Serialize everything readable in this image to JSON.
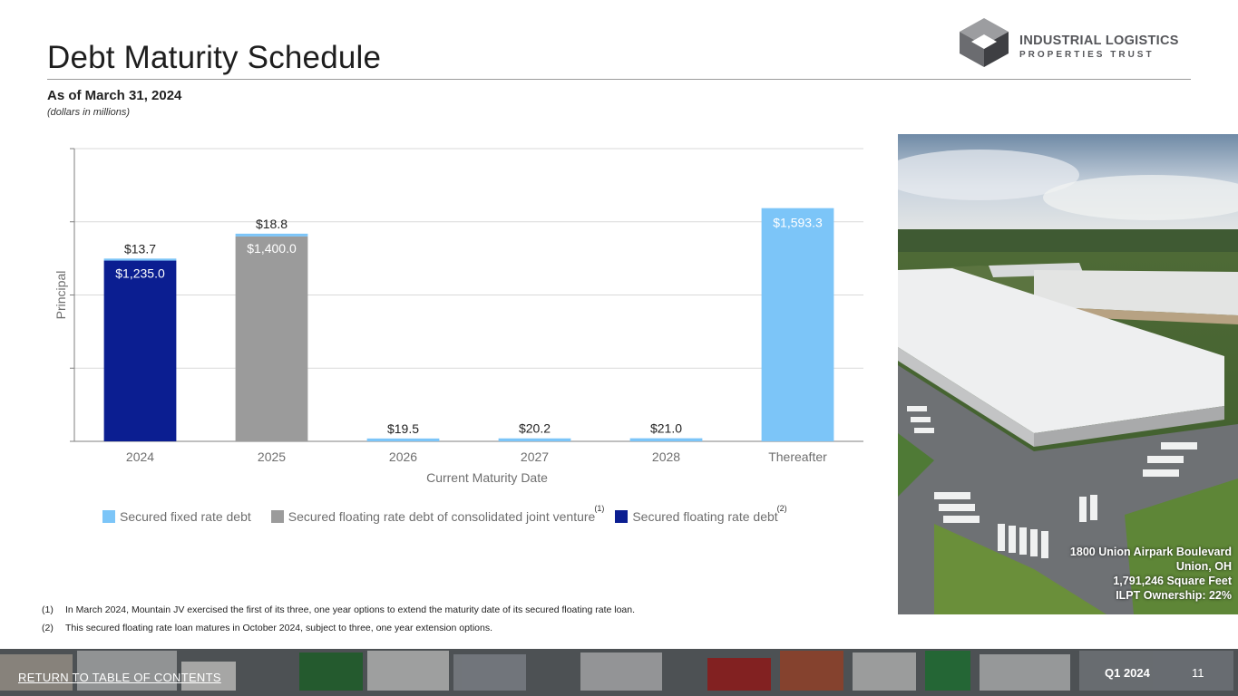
{
  "header": {
    "title": "Debt Maturity Schedule",
    "subtitle": "As of March 31, 2024",
    "units": "(dollars in millions)"
  },
  "logo": {
    "line1": "INDUSTRIAL LOGISTICS",
    "line2": "PROPERTIES TRUST",
    "colors": {
      "top": "#9c9da0",
      "left": "#6b6c70",
      "right": "#3e3f43",
      "text": "#55565a"
    }
  },
  "chart_data": {
    "type": "bar",
    "stacked": true,
    "title": "",
    "xlabel": "Current Maturity Date",
    "ylabel": "Principal",
    "ylim": [
      0,
      2000
    ],
    "y_ticks": [
      0,
      500,
      1000,
      1500,
      2000
    ],
    "y_tick_labels_visible": false,
    "grid": true,
    "legend_position": "bottom",
    "categories": [
      "2024",
      "2025",
      "2026",
      "2027",
      "2028",
      "Thereafter"
    ],
    "series": [
      {
        "name": "Secured floating rate debt",
        "color": "#0b1e91",
        "values": [
          1235.0,
          0,
          0,
          0,
          0,
          0
        ]
      },
      {
        "name": "Secured floating rate debt of consolidated joint venture",
        "color": "#9b9b9b",
        "values": [
          0,
          1400.0,
          0,
          0,
          0,
          0
        ]
      },
      {
        "name": "Secured fixed rate debt",
        "color": "#7cc5f8",
        "values": [
          13.7,
          18.8,
          19.5,
          20.2,
          21.0,
          1593.3
        ]
      }
    ],
    "data_labels": {
      "inside": [
        "$1,235.0",
        "$1,400.0",
        "",
        "",
        "",
        "$1,593.3"
      ],
      "above": [
        "$13.7",
        "$18.8",
        "$19.5",
        "$20.2",
        "$21.0",
        ""
      ]
    },
    "legend_order": [
      {
        "series": 2,
        "label": "Secured fixed rate debt",
        "superscript": ""
      },
      {
        "series": 1,
        "label": "Secured floating rate debt of consolidated joint venture",
        "superscript": "(1)"
      },
      {
        "series": 0,
        "label": "Secured floating rate debt",
        "superscript": "(2)"
      }
    ]
  },
  "photo": {
    "caption_lines": [
      "1800 Union Airpark Boulevard",
      "Union, OH",
      "1,791,246 Square Feet",
      "ILPT Ownership: 22%"
    ]
  },
  "footnotes": [
    {
      "num": "(1)",
      "text": "In March 2024, Mountain JV exercised the first of its three, one year options to extend the maturity date of its secured floating rate loan."
    },
    {
      "num": "(2)",
      "text": "This secured floating rate loan matures in October 2024, subject to three, one year extension options."
    }
  ],
  "footer": {
    "return_label": "RETURN TO TABLE OF CONTENTS",
    "quarter": "Q1 2024",
    "page": "11"
  }
}
